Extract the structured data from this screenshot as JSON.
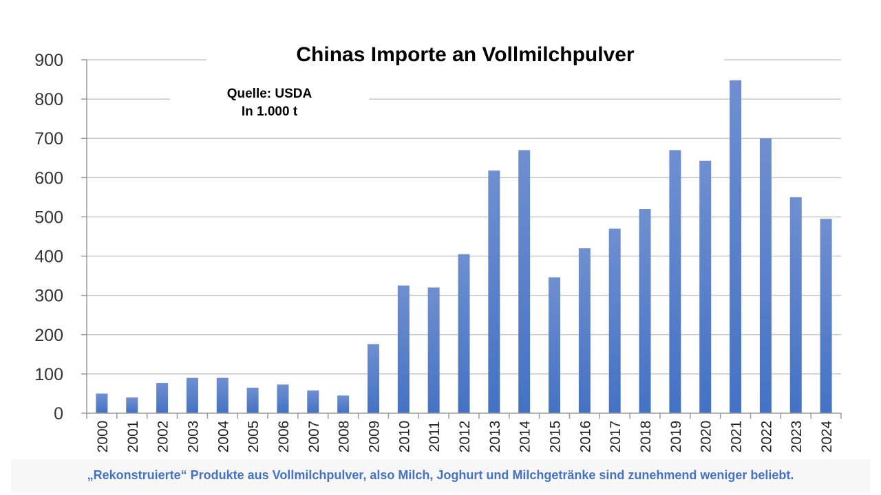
{
  "chart_data": {
    "type": "bar",
    "title": "Chinas Importe an Vollmilchpulver",
    "annotations": [
      "Quelle: USDA",
      "In 1.000 t"
    ],
    "categories": [
      "2000",
      "2001",
      "2002",
      "2003",
      "2004",
      "2005",
      "2006",
      "2007",
      "2008",
      "2009",
      "2010",
      "2011",
      "2012",
      "2013",
      "2014",
      "2015",
      "2016",
      "2017",
      "2018",
      "2019",
      "2020",
      "2021",
      "2022",
      "2023",
      "2024"
    ],
    "values": [
      50,
      40,
      77,
      90,
      90,
      65,
      73,
      58,
      45,
      176,
      325,
      320,
      405,
      618,
      670,
      346,
      420,
      470,
      520,
      670,
      643,
      848,
      700,
      550,
      495
    ],
    "ylim": [
      0,
      900
    ],
    "yticks": [
      0,
      100,
      200,
      300,
      400,
      500,
      600,
      700,
      800,
      900
    ],
    "xlabel": "",
    "ylabel": "",
    "grid": true,
    "legend": "none",
    "bar_color": "#4472c4"
  },
  "caption": "„Rekonstruierte“ Produkte aus Vollmilchpulver, also Milch, Joghurt und Milchgetränke sind zunehmend weniger beliebt."
}
